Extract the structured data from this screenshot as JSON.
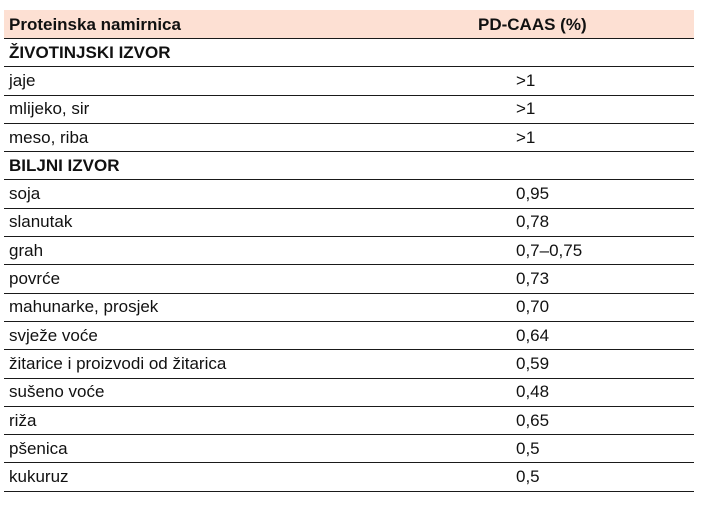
{
  "table": {
    "headers": [
      "Proteinska namirnica",
      "PD-CAAS (%)"
    ],
    "rows": [
      {
        "section": true,
        "name": "ŽIVOTINJSKI IZVOR",
        "value": ""
      },
      {
        "section": false,
        "name": "jaje",
        "value": ">1"
      },
      {
        "section": false,
        "name": "mlijeko, sir",
        "value": ">1"
      },
      {
        "section": false,
        "name": "meso, riba",
        "value": ">1"
      },
      {
        "section": true,
        "name": "BILJNI IZVOR",
        "value": ""
      },
      {
        "section": false,
        "name": "soja",
        "value": "0,95"
      },
      {
        "section": false,
        "name": "slanutak",
        "value": "0,78"
      },
      {
        "section": false,
        "name": "grah",
        "value": "0,7–0,75"
      },
      {
        "section": false,
        "name": "povrće",
        "value": "0,73"
      },
      {
        "section": false,
        "name": "mahunarke, prosjek",
        "value": "0,70"
      },
      {
        "section": false,
        "name": "svježe voće",
        "value": "0,64"
      },
      {
        "section": false,
        "name": "žitarice i proizvodi od žitarica",
        "value": "0,59"
      },
      {
        "section": false,
        "name": "sušeno voće",
        "value": "0,48"
      },
      {
        "section": false,
        "name": "riža",
        "value": "0,65"
      },
      {
        "section": false,
        "name": "pšenica",
        "value": "0,5"
      },
      {
        "section": false,
        "name": "kukuruz",
        "value": "0,5"
      }
    ]
  }
}
